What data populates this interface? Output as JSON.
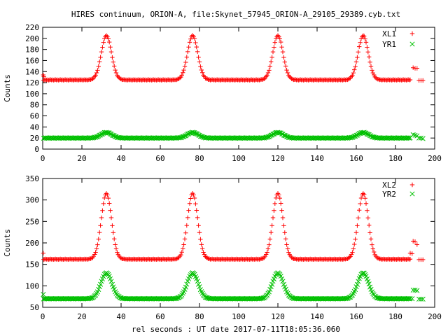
{
  "title": "HIRES continuum, ORION-A, file:Skynet_57945_ORION-A_29105_29389.cyb.txt",
  "chart_data": [
    {
      "type": "scatter",
      "ylabel": "Counts",
      "xlabel": "",
      "xlim": [
        0,
        200
      ],
      "ylim": [
        0,
        220
      ],
      "xticks": [
        0,
        20,
        40,
        60,
        80,
        100,
        120,
        140,
        160,
        180,
        200
      ],
      "yticks": [
        0,
        20,
        40,
        60,
        80,
        100,
        120,
        140,
        160,
        180,
        200,
        220
      ],
      "legend_position": "top-right",
      "grid": false,
      "series": [
        {
          "name": "XL1",
          "color": "#ff0000",
          "marker": "plus",
          "baseline": 125,
          "peak": 205,
          "peak_centers": [
            32.5,
            76.5,
            120.0,
            163.5
          ],
          "peak_width_sd": 2.6,
          "x_range": [
            0.5,
            187.5
          ],
          "step": 0.5,
          "extra_points": [
            [
              0.3,
              134
            ],
            [
              0.6,
              131
            ],
            [
              189.0,
              147
            ],
            [
              190.0,
              146
            ],
            [
              191.0,
              146
            ],
            [
              192.0,
              124
            ],
            [
              193.0,
              124
            ],
            [
              194.0,
              124
            ]
          ]
        },
        {
          "name": "YR1",
          "color": "#00c000",
          "marker": "x",
          "baseline": 20,
          "peak": 30,
          "peak_centers": [
            32.5,
            76.5,
            120.0,
            163.5
          ],
          "peak_width_sd": 2.8,
          "x_range": [
            0.5,
            187.5
          ],
          "step": 0.5,
          "extra_points": [
            [
              189.0,
              26
            ],
            [
              190.0,
              25
            ],
            [
              191.0,
              24
            ],
            [
              192.0,
              20
            ],
            [
              193.0,
              20
            ],
            [
              194.0,
              19
            ]
          ]
        }
      ]
    },
    {
      "type": "scatter",
      "ylabel": "Counts",
      "xlabel": "rel seconds : UT date 2017-07-11T18:05:36.060",
      "xlim": [
        0,
        200
      ],
      "ylim": [
        50,
        350
      ],
      "xticks": [
        0,
        20,
        40,
        60,
        80,
        100,
        120,
        140,
        160,
        180,
        200
      ],
      "yticks": [
        50,
        100,
        150,
        200,
        250,
        300,
        350
      ],
      "legend_position": "top-right",
      "grid": false,
      "series": [
        {
          "name": "XL2",
          "color": "#ff0000",
          "marker": "plus",
          "baseline": 162,
          "peak": 315,
          "peak_centers": [
            32.5,
            76.5,
            120.0,
            163.5
          ],
          "peak_width_sd": 2.6,
          "x_range": [
            0.5,
            187.5
          ],
          "step": 0.5,
          "extra_points": [
            [
              0.3,
              176
            ],
            [
              187.5,
              176
            ],
            [
              188.5,
              175
            ],
            [
              189.0,
              204
            ],
            [
              190.0,
              203
            ],
            [
              191.0,
              196
            ],
            [
              192.0,
              161
            ],
            [
              193.0,
              161
            ],
            [
              194.0,
              161
            ]
          ]
        },
        {
          "name": "YR2",
          "color": "#00c000",
          "marker": "x",
          "baseline": 70,
          "peak": 130,
          "peak_centers": [
            32.5,
            76.5,
            120.0,
            163.5
          ],
          "peak_width_sd": 2.8,
          "x_range": [
            0.5,
            187.5
          ],
          "step": 0.5,
          "extra_points": [
            [
              0.3,
              80
            ],
            [
              188.5,
              70
            ],
            [
              189.0,
              90
            ],
            [
              190.0,
              90
            ],
            [
              191.0,
              89
            ],
            [
              192.0,
              69
            ],
            [
              193.0,
              69
            ],
            [
              194.0,
              69
            ]
          ]
        }
      ]
    }
  ]
}
